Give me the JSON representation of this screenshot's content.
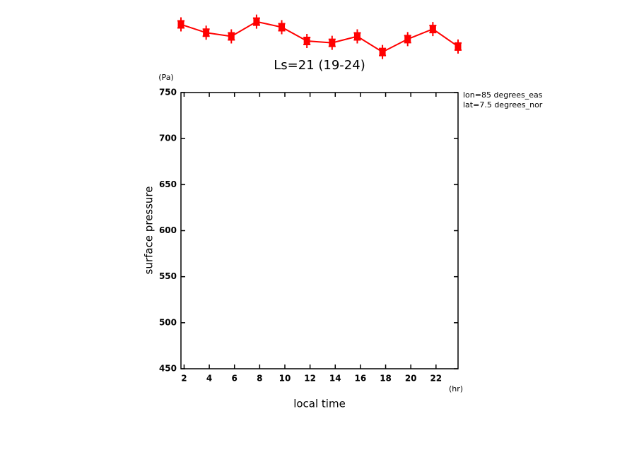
{
  "chart_data": {
    "type": "line",
    "title": "Ls=21 (19-24)",
    "y_label": "surface pressure",
    "y_unit": "(Pa)",
    "x_label": "local time",
    "x_unit": "(hr)",
    "annotations": [
      "lon=85 degrees_eas",
      "lat=7.5 degrees_nor"
    ],
    "x": [
      1.75,
      3.75,
      5.75,
      7.75,
      9.75,
      11.75,
      13.75,
      15.75,
      17.75,
      19.75,
      21.75,
      23.75
    ],
    "series": [
      {
        "color": "#ff0000",
        "values": [
          824,
          815,
          811,
          827,
          821,
          806,
          804,
          811,
          794,
          808,
          819,
          800
        ]
      }
    ],
    "xlim": [
      1.75,
      23.75
    ],
    "xticks": [
      2,
      4,
      6,
      8,
      10,
      12,
      14,
      16,
      18,
      20,
      22
    ],
    "ylim": [
      450,
      750
    ],
    "yticks": [
      450,
      500,
      550,
      600,
      650,
      700,
      750
    ]
  }
}
